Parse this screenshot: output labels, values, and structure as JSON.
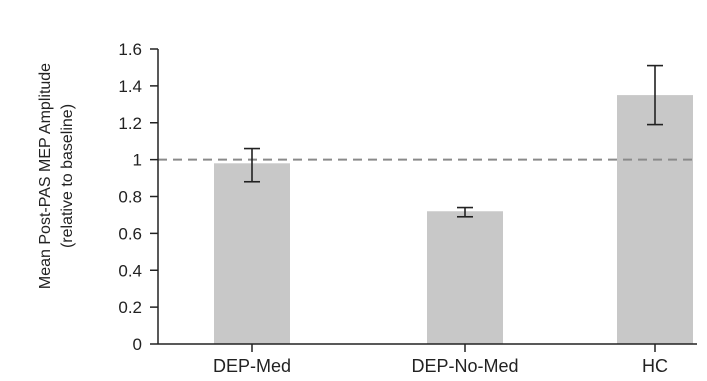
{
  "chart_data": {
    "type": "bar",
    "categories": [
      "DEP-Med",
      "DEP-No-Med",
      "HC"
    ],
    "values": [
      0.98,
      0.72,
      1.35
    ],
    "errors": {
      "upper": [
        1.06,
        0.74,
        1.51
      ],
      "lower": [
        0.88,
        0.69,
        1.19
      ]
    },
    "reference_line": 1.0,
    "ylabel_line1": "Mean Post-PAS MEP Amplitude",
    "ylabel_line2": "(relative to baseline)",
    "yticks": [
      "0",
      "0.2",
      "0.4",
      "0.6",
      "0.8",
      "1",
      "1.2",
      "1.4",
      "1.6"
    ],
    "ylim": [
      0,
      1.6
    ],
    "grid": false,
    "colors": {
      "bar": "#c8c8c8",
      "error_bar": "#222222",
      "reference_line": "#8a8a8a",
      "axis": "#222222"
    }
  }
}
